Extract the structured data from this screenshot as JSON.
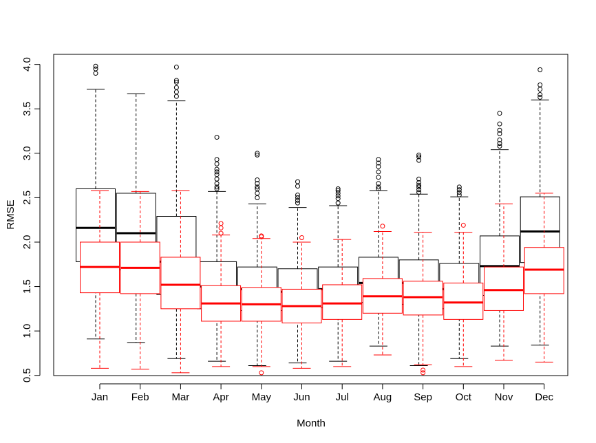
{
  "chart_data": {
    "type": "boxplot",
    "title": "",
    "xlabel": "Month",
    "ylabel": "RMSE",
    "ylim": [
      0.45,
      4.1
    ],
    "yticks": [
      0.5,
      1.0,
      1.5,
      2.0,
      2.5,
      3.0,
      3.5,
      4.0
    ],
    "ytick_labels": [
      "0.5",
      "1.0",
      "1.5",
      "2.0",
      "2.5",
      "3.0",
      "3.5",
      "4.0"
    ],
    "categories": [
      "Jan",
      "Feb",
      "Mar",
      "Apr",
      "May",
      "Jun",
      "Jul",
      "Aug",
      "Sep",
      "Oct",
      "Nov",
      "Dec"
    ],
    "grid": false,
    "legend": "none",
    "series": [
      {
        "color": "#000000",
        "whisker_style": "dashed",
        "boxes": [
          {
            "min": 0.91,
            "q1": 1.78,
            "median": 2.16,
            "q3": 2.6,
            "max": 3.72,
            "outliers": [
              3.9,
              3.95,
              3.98
            ]
          },
          {
            "min": 0.87,
            "q1": 1.69,
            "median": 2.1,
            "q3": 2.55,
            "max": 3.67,
            "outliers": []
          },
          {
            "min": 0.69,
            "q1": 1.41,
            "median": 1.78,
            "q3": 2.29,
            "max": 3.59,
            "outliers": [
              3.64,
              3.69,
              3.74,
              3.8,
              3.82,
              3.97
            ]
          },
          {
            "min": 0.66,
            "q1": 1.25,
            "median": 1.5,
            "q3": 1.78,
            "max": 2.57,
            "outliers": [
              2.6,
              2.62,
              2.66,
              2.71,
              2.76,
              2.79,
              2.82,
              2.88,
              2.93,
              3.18
            ]
          },
          {
            "min": 0.61,
            "q1": 1.23,
            "median": 1.47,
            "q3": 1.72,
            "max": 2.43,
            "outliers": [
              2.5,
              2.55,
              2.6,
              2.62,
              2.66,
              2.7,
              2.98,
              3.0
            ]
          },
          {
            "min": 0.64,
            "q1": 1.23,
            "median": 1.44,
            "q3": 1.7,
            "max": 2.39,
            "outliers": [
              2.44,
              2.47,
              2.5,
              2.53,
              2.63,
              2.68
            ]
          },
          {
            "min": 0.66,
            "q1": 1.26,
            "median": 1.47,
            "q3": 1.72,
            "max": 2.41,
            "outliers": [
              2.44,
              2.49,
              2.52,
              2.55,
              2.58,
              2.6
            ]
          },
          {
            "min": 0.83,
            "q1": 1.32,
            "median": 1.54,
            "q3": 1.83,
            "max": 2.58,
            "outliers": [
              2.6,
              2.62,
              2.66,
              2.73,
              2.79,
              2.85,
              2.89,
              2.93
            ]
          },
          {
            "min": 0.61,
            "q1": 1.3,
            "median": 1.54,
            "q3": 1.8,
            "max": 2.54,
            "outliers": [
              2.56,
              2.59,
              2.62,
              2.64,
              2.67,
              2.71,
              2.92,
              2.96,
              2.98
            ]
          },
          {
            "min": 0.69,
            "q1": 1.25,
            "median": 1.47,
            "q3": 1.76,
            "max": 2.51,
            "outliers": [
              2.53,
              2.56,
              2.59,
              2.62
            ]
          },
          {
            "min": 0.83,
            "q1": 1.4,
            "median": 1.73,
            "q3": 2.07,
            "max": 3.04,
            "outliers": [
              3.08,
              3.11,
              3.15,
              3.22,
              3.26,
              3.33,
              3.45
            ]
          },
          {
            "min": 0.84,
            "q1": 1.77,
            "median": 2.12,
            "q3": 2.51,
            "max": 3.6,
            "outliers": [
              3.63,
              3.66,
              3.72,
              3.77,
              3.94
            ]
          }
        ]
      },
      {
        "color": "#ff0000",
        "whisker_style": "dashed",
        "boxes": [
          {
            "min": 0.58,
            "q1": 1.43,
            "median": 1.72,
            "q3": 2.0,
            "max": 2.58,
            "outliers": []
          },
          {
            "min": 0.57,
            "q1": 1.42,
            "median": 1.71,
            "q3": 2.0,
            "max": 2.57,
            "outliers": []
          },
          {
            "min": 0.53,
            "q1": 1.25,
            "median": 1.52,
            "q3": 1.83,
            "max": 2.58,
            "outliers": []
          },
          {
            "min": 0.6,
            "q1": 1.11,
            "median": 1.31,
            "q3": 1.51,
            "max": 2.08,
            "outliers": [
              2.1,
              2.16,
              2.21
            ]
          },
          {
            "min": 0.6,
            "q1": 1.11,
            "median": 1.3,
            "q3": 1.49,
            "max": 2.04,
            "outliers": [
              0.53,
              2.06,
              2.07
            ]
          },
          {
            "min": 0.58,
            "q1": 1.09,
            "median": 1.28,
            "q3": 1.47,
            "max": 2.0,
            "outliers": [
              2.05
            ]
          },
          {
            "min": 0.6,
            "q1": 1.13,
            "median": 1.31,
            "q3": 1.52,
            "max": 2.03,
            "outliers": []
          },
          {
            "min": 0.73,
            "q1": 1.2,
            "median": 1.39,
            "q3": 1.59,
            "max": 2.12,
            "outliers": [
              2.18
            ]
          },
          {
            "min": 0.62,
            "q1": 1.18,
            "median": 1.38,
            "q3": 1.56,
            "max": 2.11,
            "outliers": [
              0.53,
              0.56
            ]
          },
          {
            "min": 0.6,
            "q1": 1.13,
            "median": 1.32,
            "q3": 1.54,
            "max": 2.11,
            "outliers": [
              2.19
            ]
          },
          {
            "min": 0.67,
            "q1": 1.23,
            "median": 1.46,
            "q3": 1.72,
            "max": 2.43,
            "outliers": []
          },
          {
            "min": 0.65,
            "q1": 1.42,
            "median": 1.69,
            "q3": 1.94,
            "max": 2.55,
            "outliers": []
          }
        ]
      }
    ]
  }
}
